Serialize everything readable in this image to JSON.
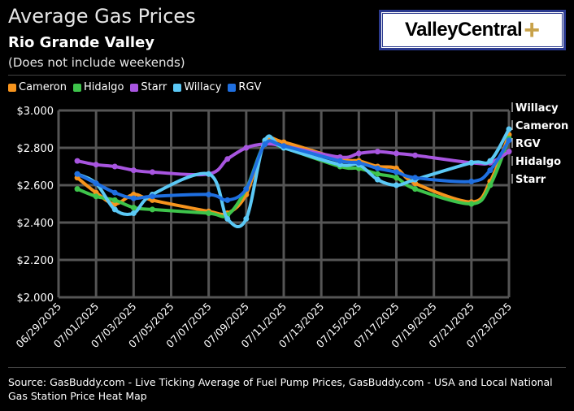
{
  "header": {
    "title": "Average Gas Prices",
    "subtitle": "Rio Grande Valley",
    "note": "(Does not include weekends)"
  },
  "logo": {
    "text": "ValleyCentral",
    "plus": "+"
  },
  "source": "Source: GasBuddy.com - Live Ticking Average of Fuel Pump Prices, GasBuddy.com - USA and Local National Gas Station Price Heat Map",
  "chart_data": {
    "type": "line",
    "x": [
      "06/30/2025",
      "07/01/2025",
      "07/02/2025",
      "07/03/2025",
      "07/04/2025",
      "07/07/2025",
      "07/08/2025",
      "07/09/2025",
      "07/10/2025",
      "07/11/2025",
      "07/14/2025",
      "07/15/2025",
      "07/16/2025",
      "07/17/2025",
      "07/18/2025",
      "07/21/2025",
      "07/22/2025",
      "07/23/2025"
    ],
    "xticks": [
      "06/29/2025",
      "07/01/2025",
      "07/03/2025",
      "07/05/2025",
      "07/07/2025",
      "07/09/2025",
      "07/11/2025",
      "07/13/2025",
      "07/15/2025",
      "07/17/2025",
      "07/19/2025",
      "07/21/2025",
      "07/23/2025"
    ],
    "yticks": [
      "$2.000",
      "$2.200",
      "$2.400",
      "$2.600",
      "$2.800",
      "$3.000"
    ],
    "ylim": [
      2.0,
      3.0
    ],
    "series": [
      {
        "name": "Cameron",
        "color": "#f7941d",
        "end_label": "Cameron",
        "values": [
          2.64,
          2.56,
          2.5,
          2.55,
          2.52,
          2.46,
          2.45,
          2.55,
          2.83,
          2.83,
          2.74,
          2.73,
          2.7,
          2.69,
          2.61,
          2.51,
          2.62,
          2.87
        ]
      },
      {
        "name": "Hidalgo",
        "color": "#3ec44b",
        "end_label": "Hidalgo",
        "values": [
          2.58,
          2.54,
          2.52,
          2.48,
          2.47,
          2.45,
          2.44,
          2.58,
          2.82,
          2.8,
          2.7,
          2.69,
          2.66,
          2.64,
          2.58,
          2.5,
          2.6,
          2.85
        ]
      },
      {
        "name": "Starr",
        "color": "#a855e0",
        "end_label": "Starr",
        "values": [
          2.73,
          2.71,
          2.7,
          2.68,
          2.67,
          2.66,
          2.74,
          2.8,
          2.82,
          2.81,
          2.75,
          2.77,
          2.78,
          2.77,
          2.76,
          2.72,
          2.72,
          2.78
        ]
      },
      {
        "name": "Willacy",
        "color": "#5bc8f5",
        "end_label": "Willacy",
        "values": [
          2.66,
          2.61,
          2.47,
          2.45,
          2.55,
          2.66,
          2.42,
          2.42,
          2.84,
          2.8,
          2.71,
          2.71,
          2.63,
          2.6,
          2.63,
          2.72,
          2.73,
          2.9
        ]
      },
      {
        "name": "RGV",
        "color": "#1f6fe0",
        "end_label": "RGV",
        "values": [
          2.66,
          2.61,
          2.56,
          2.53,
          2.54,
          2.55,
          2.52,
          2.58,
          2.82,
          2.81,
          2.73,
          2.72,
          2.69,
          2.67,
          2.64,
          2.62,
          2.68,
          2.84
        ]
      }
    ]
  }
}
